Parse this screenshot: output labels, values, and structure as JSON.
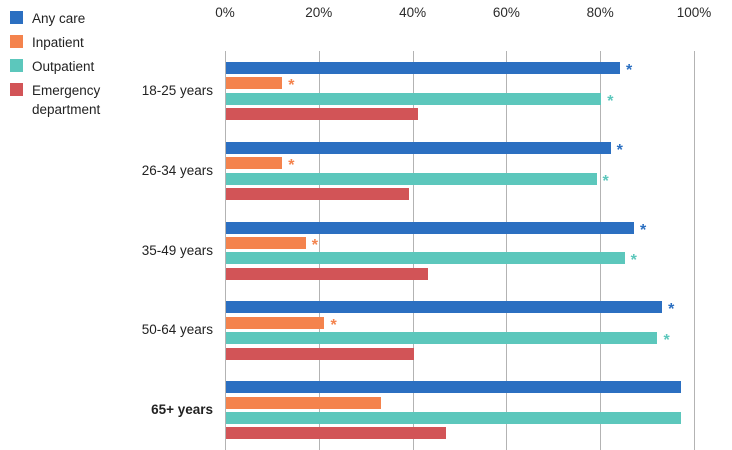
{
  "chart_data": {
    "type": "bar",
    "orientation": "horizontal",
    "title": "",
    "xlabel": "",
    "ylabel": "",
    "x_axis": {
      "min": 0,
      "max": 100,
      "tick_step": 20,
      "ticks": [
        "0%",
        "20%",
        "40%",
        "60%",
        "80%",
        "100%"
      ]
    },
    "grid": true,
    "legend_position": "top-left",
    "legend": [
      {
        "label": "Any care",
        "color": "#2b6fc1"
      },
      {
        "label": "Inpatient",
        "color": "#f4834d"
      },
      {
        "label": "Outpatient",
        "color": "#5cc7bc"
      },
      {
        "label": "Emergency department",
        "color": "#d25457"
      }
    ],
    "categories": [
      "18-25 years",
      "26-34 years",
      "35-49 years",
      "50-64 years",
      "65+ years"
    ],
    "emphasized_category": "65+ years",
    "significance_marker": "*",
    "series": [
      {
        "name": "Any care",
        "color": "#2b6fc1",
        "values": [
          84,
          82,
          87,
          93,
          97
        ],
        "significant": [
          true,
          true,
          true,
          true,
          false
        ]
      },
      {
        "name": "Inpatient",
        "color": "#f4834d",
        "values": [
          12,
          12,
          17,
          21,
          33
        ],
        "significant": [
          true,
          true,
          true,
          true,
          false
        ]
      },
      {
        "name": "Outpatient",
        "color": "#5cc7bc",
        "values": [
          80,
          79,
          85,
          92,
          97
        ],
        "significant": [
          true,
          true,
          true,
          true,
          false
        ]
      },
      {
        "name": "Emergency department",
        "color": "#d25457",
        "values": [
          41,
          39,
          43,
          40,
          47
        ],
        "significant": [
          false,
          false,
          false,
          false,
          false
        ]
      }
    ],
    "colors": {
      "gridline": "#b3b3b3",
      "tick_text": "#2b2b2b",
      "label_text": "#222222"
    }
  }
}
